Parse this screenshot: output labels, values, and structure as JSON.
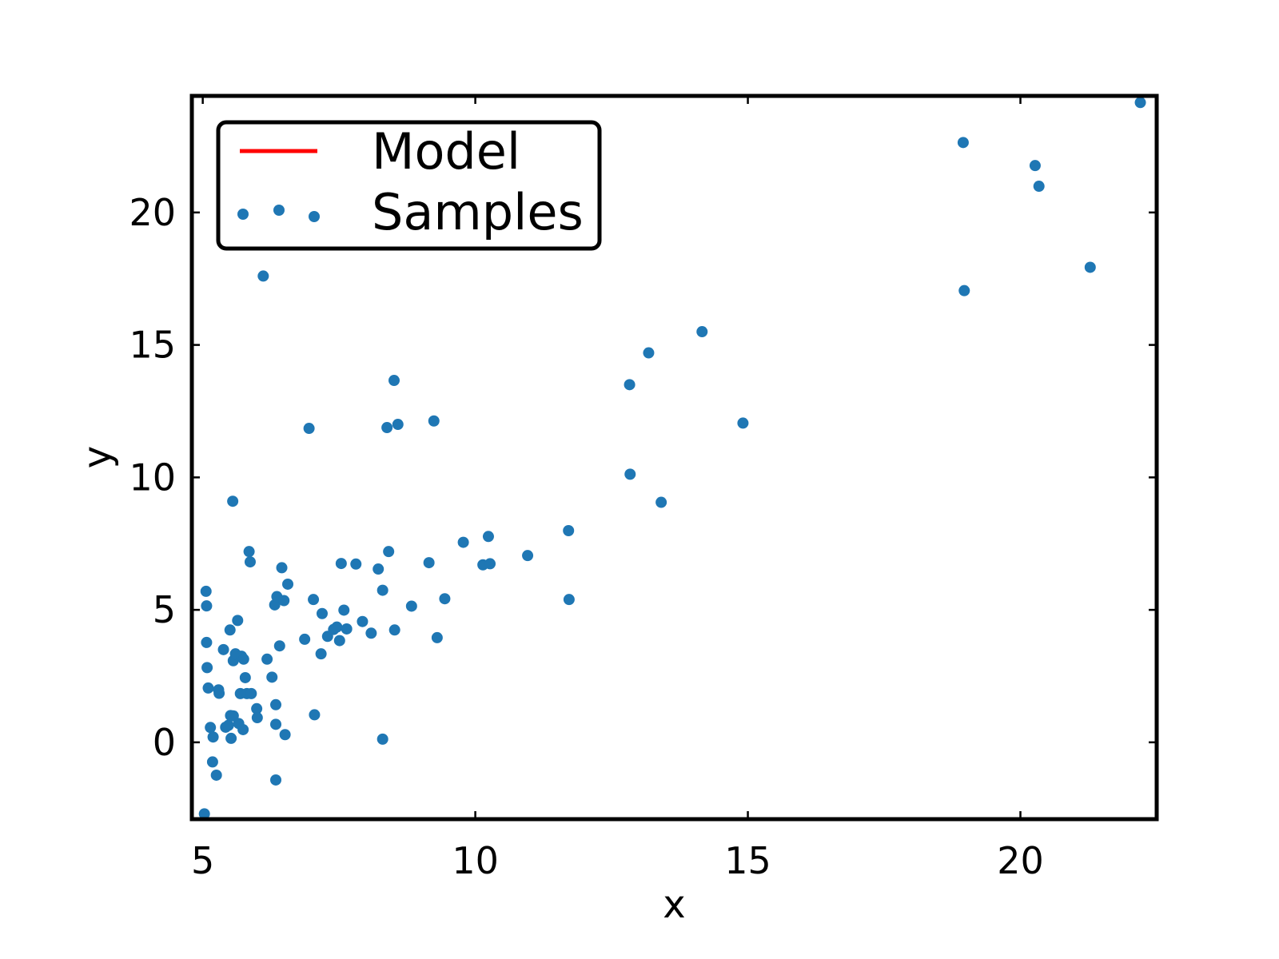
{
  "chart_data": {
    "type": "scatter",
    "title": "",
    "xlabel": "x",
    "ylabel": "y",
    "xlim": [
      4.8,
      22.5
    ],
    "ylim": [
      -2.9,
      24.4
    ],
    "xticks": [
      5,
      10,
      15,
      20
    ],
    "yticks": [
      0,
      5,
      10,
      15,
      20
    ],
    "grid": false,
    "legend": {
      "position": "top-left",
      "entries": [
        {
          "label": "Model",
          "kind": "line",
          "color": "#ff0000"
        },
        {
          "label": "Samples",
          "kind": "points",
          "color": "#1f77b4"
        }
      ]
    },
    "series": [
      {
        "name": "Model",
        "kind": "line",
        "color": "#ff0000",
        "points": []
      },
      {
        "name": "Samples",
        "kind": "points",
        "color": "#1f77b4",
        "points": [
          [
            5.03,
            -2.7
          ],
          [
            5.06,
            5.7
          ],
          [
            5.07,
            5.15
          ],
          [
            5.07,
            3.77
          ],
          [
            5.08,
            2.82
          ],
          [
            5.1,
            2.05
          ],
          [
            5.14,
            0.56
          ],
          [
            5.18,
            -0.74
          ],
          [
            5.19,
            0.2
          ],
          [
            5.25,
            -1.24
          ],
          [
            5.29,
            1.98
          ],
          [
            5.3,
            1.85
          ],
          [
            5.38,
            3.5
          ],
          [
            5.42,
            0.57
          ],
          [
            5.47,
            0.64
          ],
          [
            5.5,
            4.24
          ],
          [
            5.51,
            1.01
          ],
          [
            5.52,
            0.15
          ],
          [
            5.55,
            9.1
          ],
          [
            5.56,
            1.0
          ],
          [
            5.56,
            3.08
          ],
          [
            5.6,
            3.34
          ],
          [
            5.64,
            4.6
          ],
          [
            5.66,
            0.71
          ],
          [
            5.69,
            1.84
          ],
          [
            5.71,
            3.25
          ],
          [
            5.74,
            0.48
          ],
          [
            5.75,
            3.14
          ],
          [
            5.78,
            2.44
          ],
          [
            5.81,
            1.84
          ],
          [
            5.85,
            7.2
          ],
          [
            5.87,
            6.81
          ],
          [
            5.89,
            1.84
          ],
          [
            5.99,
            1.27
          ],
          [
            6.0,
            0.93
          ],
          [
            6.11,
            17.6
          ],
          [
            6.18,
            3.14
          ],
          [
            6.27,
            2.46
          ],
          [
            6.32,
            5.19
          ],
          [
            6.34,
            1.42
          ],
          [
            6.34,
            0.68
          ],
          [
            6.34,
            -1.42
          ],
          [
            6.36,
            5.5
          ],
          [
            6.41,
            3.64
          ],
          [
            6.45,
            6.59
          ],
          [
            6.49,
            5.35
          ],
          [
            6.51,
            0.29
          ],
          [
            6.56,
            5.97
          ],
          [
            6.87,
            3.89
          ],
          [
            6.95,
            11.85
          ],
          [
            7.03,
            5.39
          ],
          [
            7.05,
            1.04
          ],
          [
            7.17,
            3.34
          ],
          [
            7.19,
            4.86
          ],
          [
            7.29,
            4.0
          ],
          [
            7.4,
            4.26
          ],
          [
            7.46,
            4.35
          ],
          [
            7.51,
            3.84
          ],
          [
            7.54,
            6.75
          ],
          [
            7.59,
            4.99
          ],
          [
            7.64,
            4.28
          ],
          [
            7.81,
            6.73
          ],
          [
            7.93,
            4.56
          ],
          [
            8.09,
            4.12
          ],
          [
            8.22,
            6.54
          ],
          [
            8.3,
            0.12
          ],
          [
            8.3,
            5.74
          ],
          [
            8.38,
            11.88
          ],
          [
            8.41,
            7.2
          ],
          [
            8.51,
            13.66
          ],
          [
            8.52,
            4.24
          ],
          [
            8.58,
            12.0
          ],
          [
            8.83,
            5.14
          ],
          [
            9.15,
            6.78
          ],
          [
            9.24,
            12.13
          ],
          [
            9.3,
            3.95
          ],
          [
            9.44,
            5.42
          ],
          [
            9.78,
            7.55
          ],
          [
            10.14,
            6.7
          ],
          [
            10.24,
            7.77
          ],
          [
            10.27,
            6.74
          ],
          [
            10.96,
            7.05
          ],
          [
            11.71,
            7.99
          ],
          [
            11.72,
            5.39
          ],
          [
            12.83,
            13.5
          ],
          [
            12.84,
            10.12
          ],
          [
            13.18,
            14.7
          ],
          [
            13.41,
            9.06
          ],
          [
            14.16,
            15.5
          ],
          [
            14.91,
            12.05
          ],
          [
            18.95,
            22.64
          ],
          [
            18.97,
            17.05
          ],
          [
            20.27,
            21.77
          ],
          [
            20.34,
            20.99
          ],
          [
            21.28,
            17.93
          ],
          [
            22.2,
            24.15
          ]
        ]
      }
    ]
  }
}
